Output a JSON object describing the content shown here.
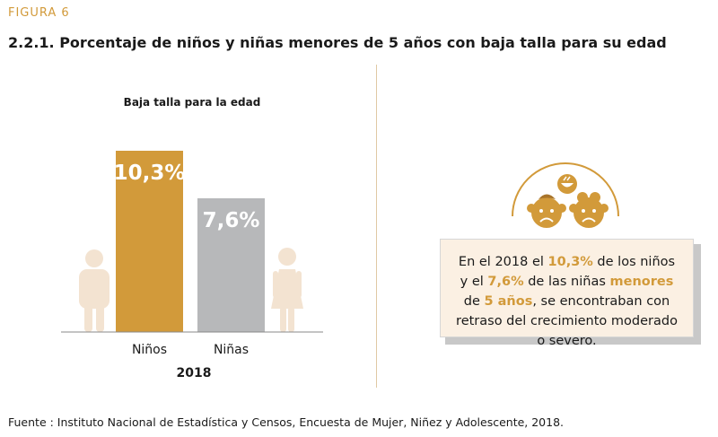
{
  "figure_label": "FIGURA 6",
  "page_title": "2.2.1. Porcentaje de niños y niñas menores de 5 años con baja talla para su edad",
  "chart_data": {
    "type": "bar",
    "title": "Baja talla para la edad",
    "categories": [
      "Niños",
      "Niñas"
    ],
    "values": [
      10.3,
      7.6
    ],
    "data_labels": [
      "10,3%",
      "7,6%"
    ],
    "xlabel": "2018",
    "colors": [
      "#d29a3a",
      "#b7b8ba"
    ],
    "ylim": [
      0,
      10.3
    ]
  },
  "callout": {
    "p1": "En el 2018  el ",
    "h1": "10,3%",
    "p2": " de los niños y el ",
    "h2": "7,6%",
    "p3": " de las niñas ",
    "h3": "menores",
    "p4": " de ",
    "h4": "5 años",
    "p5": ", se encontraban con retraso del crecimiento moderado o severo."
  },
  "icons": {
    "boy": "boy-figure-icon",
    "girl": "girl-figure-icon",
    "sad_kids": "sad-children-faces-icon"
  },
  "colors": {
    "accent": "#d29a3a",
    "secondary": "#b7b8ba",
    "figure_beige": "#f3e3d1",
    "callout_bg": "#fbf0e3"
  },
  "source": "Fuente : Instituto Nacional de Estadística y Censos, Encuesta de Mujer, Niñez y Adolescente, 2018."
}
